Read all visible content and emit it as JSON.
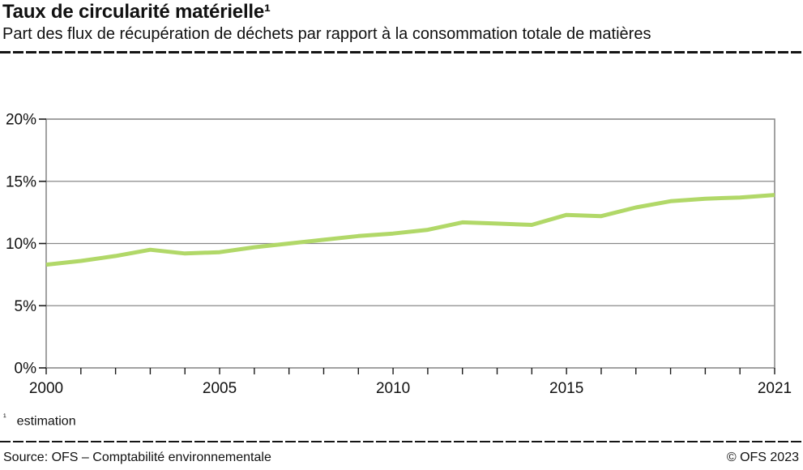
{
  "header": {
    "title": "Taux de circularité matérielle¹",
    "subtitle": "Part des flux de récupération de déchets par rapport à la consommation totale de matières"
  },
  "footnote": {
    "marker": "¹",
    "text": "estimation"
  },
  "footer": {
    "source": "Source: OFS – Comptabilité environnementale",
    "copyright": "© OFS 2023"
  },
  "colors": {
    "line": "#b1d868",
    "grid": "#8a8a8a",
    "tick": "#1a1a1a",
    "text": "#111111"
  },
  "chart_data": {
    "type": "line",
    "title": "Taux de circularité matérielle",
    "unit": "%",
    "x": [
      2000,
      2001,
      2002,
      2003,
      2004,
      2005,
      2006,
      2007,
      2008,
      2009,
      2010,
      2011,
      2012,
      2013,
      2014,
      2015,
      2016,
      2017,
      2018,
      2019,
      2020,
      2021
    ],
    "values": [
      8.3,
      8.6,
      9.0,
      9.5,
      9.2,
      9.3,
      9.7,
      10.0,
      10.3,
      10.6,
      10.8,
      11.1,
      11.7,
      11.6,
      11.5,
      12.3,
      12.2,
      12.9,
      13.4,
      13.6,
      13.7,
      13.9
    ],
    "ylim": [
      0,
      20
    ],
    "y_ticks": [
      0,
      5,
      10,
      15,
      20
    ],
    "y_tick_labels": [
      "0%",
      "5%",
      "10%",
      "15%",
      "20%"
    ],
    "x_ticks": [
      2000,
      2005,
      2010,
      2015,
      2021
    ],
    "x_tick_labels": [
      "2000",
      "2005",
      "2010",
      "2015",
      "2021"
    ],
    "grid": "horizontal",
    "legend": "none"
  }
}
